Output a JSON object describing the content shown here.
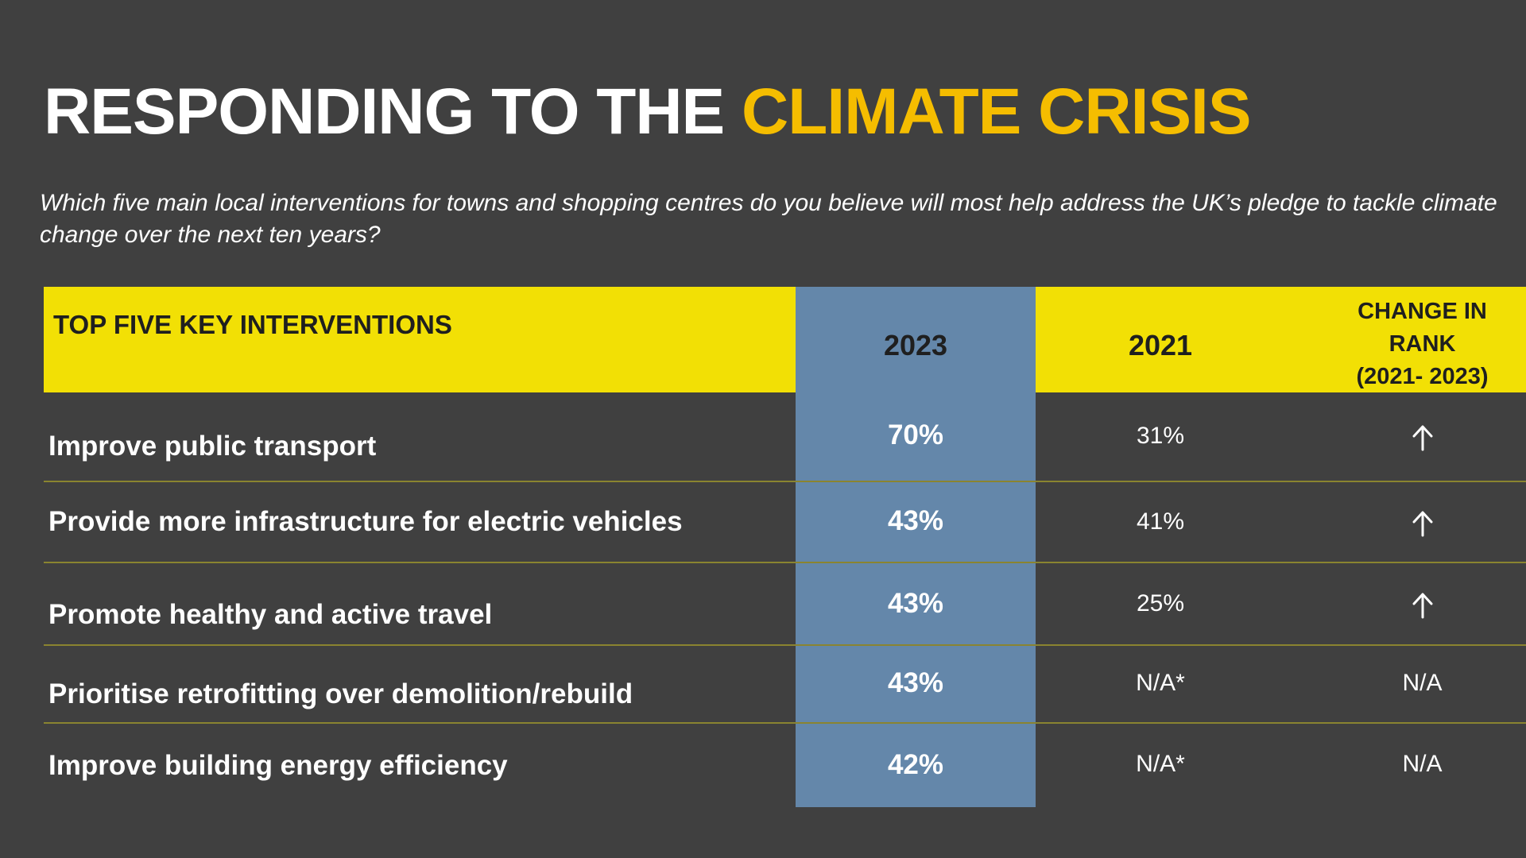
{
  "title": {
    "prefix": "RESPONDING TO THE ",
    "highlight": "CLIMATE CRISIS"
  },
  "subtitle": "Which five main local interventions for towns and shopping centres do you believe will most help address the UK’s pledge to tackle climate change over the next ten years?",
  "table": {
    "headers": {
      "interventions": "TOP FIVE KEY INTERVENTIONS",
      "year_2023": "2023",
      "year_2021": "2021",
      "change_line1": "CHANGE IN",
      "change_line2": "RANK",
      "change_line3": "(2021- 2023)"
    },
    "rows": [
      {
        "label": "Improve public transport",
        "v2023": "70%",
        "v2021": "31%",
        "change": "up-arrow-icon"
      },
      {
        "label": "Provide more infrastructure for electric vehicles",
        "v2023": "43%",
        "v2021": "41%",
        "change": "up-arrow-icon"
      },
      {
        "label": "Promote healthy and active travel",
        "v2023": "43%",
        "v2021": "25%",
        "change": "up-arrow-icon"
      },
      {
        "label": "Prioritise retrofitting over demolition/rebuild",
        "v2023": "43%",
        "v2021": "N/A*",
        "change": "N/A"
      },
      {
        "label": "Improve building energy efficiency",
        "v2023": "42%",
        "v2021": "N/A*",
        "change": "N/A"
      }
    ]
  },
  "colors": {
    "background": "#404040",
    "title_accent": "#f5bd00",
    "header_yellow": "#f2e005",
    "column_2023_blue": "#6487aa",
    "row_divider": "#8a8430"
  }
}
